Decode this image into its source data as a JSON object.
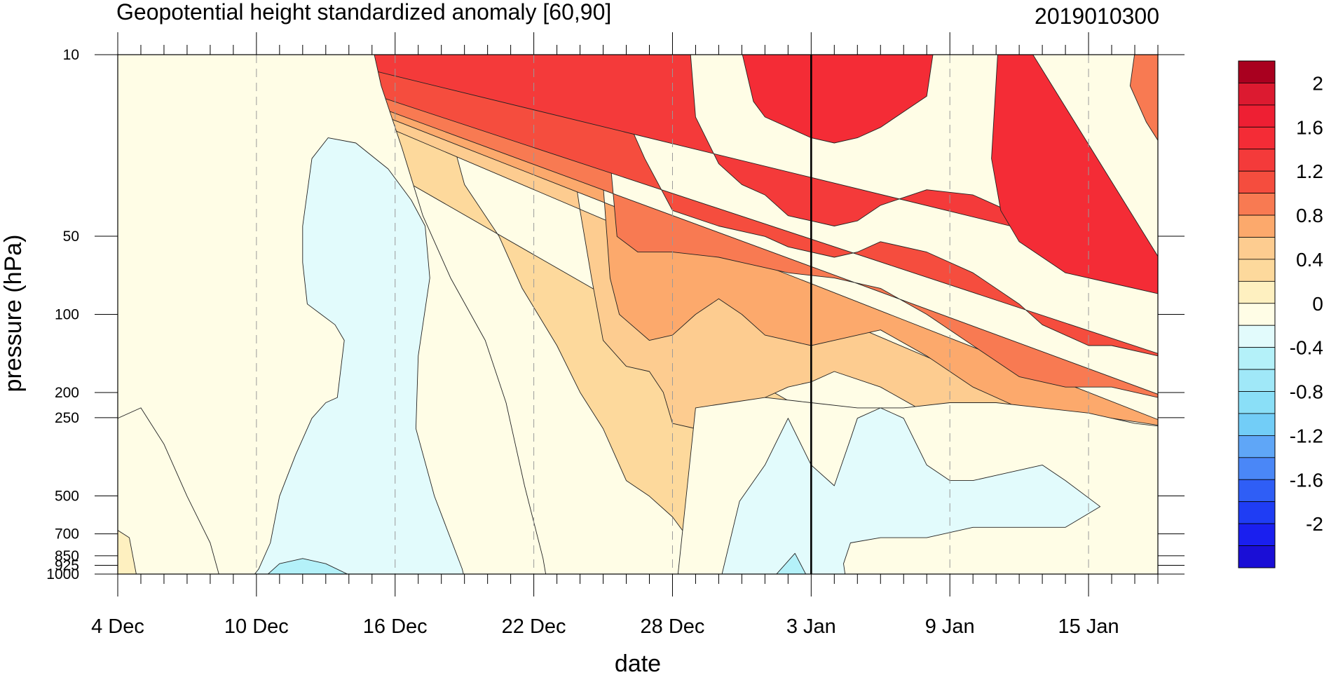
{
  "chart_data": {
    "type": "heatmap",
    "subtype": "filled-contour time-pressure cross-section",
    "title": "Geopotential height standardized anomaly [60,90]",
    "title_right": "2019010300",
    "xlabel": "date",
    "ylabel": "pressure (hPa)",
    "x_start": "2018-12-04",
    "x_end": "2019-01-18",
    "x_ticks": [
      "4 Dec",
      "10 Dec",
      "16 Dec",
      "22 Dec",
      "28 Dec",
      "3 Jan",
      "9 Jan",
      "15 Jan"
    ],
    "x_tick_days": [
      0,
      6,
      12,
      18,
      24,
      30,
      36,
      42
    ],
    "x_end_day": 45,
    "current_date_line": "3 Jan",
    "current_date_day": 30,
    "y_axis": "pressure (hPa), log scale, reversed",
    "y_ticks": [
      10,
      50,
      100,
      200,
      250,
      500,
      700,
      850,
      925,
      1000
    ],
    "y_tick_labels": [
      "10",
      "50",
      "100",
      "200",
      "250",
      "500",
      "700",
      "850",
      "925",
      "1000"
    ],
    "ylim": [
      1000,
      10
    ],
    "grid": "dashed vertical lines at major date ticks",
    "colorbar": {
      "position": "right",
      "levels": [
        -2.2,
        -2.0,
        -1.8,
        -1.6,
        -1.4,
        -1.2,
        -1.0,
        -0.8,
        -0.6,
        -0.4,
        -0.2,
        0,
        0.2,
        0.4,
        0.6,
        0.8,
        1.0,
        1.2,
        1.4,
        1.6,
        1.8,
        2.0,
        2.2
      ],
      "labels": [
        "2",
        "1.6",
        "1.2",
        "0.8",
        "0.4",
        "0",
        "-0.4",
        "-0.8",
        "-1.2",
        "-1.6",
        "-2"
      ],
      "colors_low_to_high": [
        "#1a0ed6",
        "#1a1fef",
        "#1f3df4",
        "#2f5ef6",
        "#4a87f7",
        "#5fa6f7",
        "#72cdf7",
        "#8adff7",
        "#a0e8f8",
        "#b4f1f9",
        "#e2fbfc",
        "#fffde6",
        "#fef0c0",
        "#fdd99c",
        "#fdcc90",
        "#fca96c",
        "#f87a52",
        "#f54d3e",
        "#f43a3a",
        "#f42c36",
        "#ee1f33",
        "#dc1a30",
        "#a9001f"
      ]
    },
    "regions": [
      {
        "level": 0.4,
        "points": [
          [
            -1,
            -0.1
          ],
          [
            13.1,
            -0.1
          ],
          [
            14.2,
            0.12
          ],
          [
            15,
            0.25
          ],
          [
            16.5,
            0.35
          ],
          [
            17.5,
            0.45
          ],
          [
            19,
            0.56
          ],
          [
            20,
            0.65
          ],
          [
            21,
            0.72
          ],
          [
            22,
            0.82
          ],
          [
            23,
            0.85
          ],
          [
            24,
            0.89
          ],
          [
            25,
            0.95
          ],
          [
            27,
            0.95
          ],
          [
            29,
            0.96
          ],
          [
            31,
            0.95
          ],
          [
            35,
            0.98
          ],
          [
            39,
            1
          ],
          [
            43,
            0.99
          ],
          [
            46,
            1.1
          ]
        ]
      },
      {
        "level": 0.6,
        "points": [
          [
            -1,
            -0.1
          ],
          [
            18.8,
            -0.1
          ],
          [
            19.5,
            0.15
          ],
          [
            20,
            0.3
          ],
          [
            20.5,
            0.43
          ],
          [
            21,
            0.55
          ],
          [
            22,
            0.6
          ],
          [
            23,
            0.61
          ],
          [
            23.6,
            0.65
          ],
          [
            24,
            0.71
          ],
          [
            25,
            0.72
          ],
          [
            26,
            0.74
          ],
          [
            27,
            0.74
          ],
          [
            28,
            0.66
          ],
          [
            29,
            0.64
          ],
          [
            30,
            0.63
          ],
          [
            31,
            0.61
          ],
          [
            33,
            0.64
          ],
          [
            35,
            0.69
          ],
          [
            38,
            0.75
          ],
          [
            40,
            0.76
          ],
          [
            42,
            0.76
          ],
          [
            44,
            0.77
          ],
          [
            46,
            0.79
          ]
        ]
      },
      {
        "level": 0.8,
        "points": [
          [
            -1,
            -0.1
          ],
          [
            20.5,
            -0.1
          ],
          [
            20.8,
            0.1
          ],
          [
            21,
            0.25
          ],
          [
            21.3,
            0.43
          ],
          [
            21.7,
            0.5
          ],
          [
            23,
            0.55
          ],
          [
            24,
            0.54
          ],
          [
            25,
            0.5
          ],
          [
            26,
            0.47
          ],
          [
            27,
            0.5
          ],
          [
            28,
            0.54
          ],
          [
            29,
            0.55
          ],
          [
            30,
            0.56
          ],
          [
            31,
            0.55
          ],
          [
            33,
            0.53
          ],
          [
            35,
            0.58
          ],
          [
            37,
            0.64
          ],
          [
            39,
            0.68
          ],
          [
            41,
            0.69
          ],
          [
            43,
            0.7
          ],
          [
            46,
            0.72
          ]
        ]
      },
      {
        "level": 1.0,
        "points": [
          [
            -1,
            -0.1
          ],
          [
            21.1,
            -0.1
          ],
          [
            21.3,
            0.2
          ],
          [
            21.6,
            0.35
          ],
          [
            22.5,
            0.38
          ],
          [
            24,
            0.38
          ],
          [
            26,
            0.39
          ],
          [
            27,
            0.4
          ],
          [
            29,
            0.42
          ],
          [
            31,
            0.43
          ],
          [
            33,
            0.45
          ],
          [
            35,
            0.5
          ],
          [
            37,
            0.56
          ],
          [
            39,
            0.62
          ],
          [
            41,
            0.64
          ],
          [
            43,
            0.64
          ],
          [
            46,
            0.67
          ]
        ]
      },
      {
        "level": 1.2,
        "points": [
          [
            -1,
            -0.1
          ],
          [
            22,
            -0.1
          ],
          [
            22.2,
            0.14
          ],
          [
            22.8,
            0.2
          ],
          [
            24,
            0.3
          ],
          [
            26,
            0.33
          ],
          [
            27,
            0.34
          ],
          [
            28,
            0.35
          ],
          [
            29,
            0.37
          ],
          [
            31,
            0.39
          ],
          [
            32,
            0.38
          ],
          [
            33,
            0.36
          ],
          [
            35,
            0.38
          ],
          [
            37,
            0.42
          ],
          [
            39,
            0.48
          ],
          [
            40,
            0.52
          ],
          [
            42,
            0.56
          ],
          [
            43,
            0.56
          ],
          [
            46,
            0.59
          ]
        ]
      },
      {
        "level": 1.4,
        "points": [
          [
            -1,
            -0.1
          ],
          [
            24.6,
            -0.1
          ],
          [
            25,
            0.12
          ],
          [
            26,
            0.21
          ],
          [
            27,
            0.25
          ],
          [
            28,
            0.27
          ],
          [
            29,
            0.31
          ],
          [
            30,
            0.32
          ],
          [
            31,
            0.33
          ],
          [
            32,
            0.32
          ],
          [
            33,
            0.29
          ],
          [
            35,
            0.26
          ],
          [
            37,
            0.27
          ],
          [
            39,
            0.31
          ],
          [
            41,
            0.36
          ],
          [
            43,
            0.38
          ],
          [
            45,
            0.4
          ],
          [
            46,
            0.41
          ]
        ]
      },
      {
        "level": 1.6,
        "points": [
          [
            -1,
            -0.1
          ],
          [
            26.5,
            -0.1
          ],
          [
            27.5,
            0.09
          ],
          [
            28,
            0.12
          ],
          [
            29,
            0.14
          ],
          [
            30,
            0.16
          ],
          [
            31,
            0.17
          ],
          [
            32,
            0.16
          ],
          [
            33,
            0.14
          ],
          [
            34,
            0.11
          ],
          [
            35,
            0.08
          ],
          [
            35.6,
            -0.1
          ]
        ]
      },
      {
        "level": 1.6,
        "points": [
          [
            38.2,
            -0.1
          ],
          [
            37.8,
            0.2
          ],
          [
            38.2,
            0.3
          ],
          [
            39,
            0.36
          ],
          [
            41,
            0.42
          ],
          [
            43,
            0.44
          ],
          [
            45,
            0.46
          ],
          [
            46,
            0.46
          ]
        ]
      },
      {
        "level": 1.0,
        "points": [
          [
            45.5,
            -0.1
          ],
          [
            44.3,
            -0.1
          ],
          [
            43.8,
            0.06
          ],
          [
            44.5,
            0.13
          ],
          [
            45.5,
            0.2
          ],
          [
            46,
            0.2
          ]
        ]
      },
      {
        "level": 0.0,
        "points": [
          [
            -1,
            1.1
          ],
          [
            -1,
            -0.1
          ],
          [
            10.6,
            -0.1
          ],
          [
            11.4,
            0.06
          ],
          [
            12.3,
            0.18
          ],
          [
            13.2,
            0.31
          ],
          [
            14.4,
            0.43
          ],
          [
            15.9,
            0.55
          ],
          [
            16.8,
            0.67
          ],
          [
            17.6,
            0.83
          ],
          [
            18.4,
            0.97
          ],
          [
            18.9,
            1.1
          ]
        ]
      },
      {
        "level": 0.0,
        "points": [
          [
            -1,
            1.1
          ],
          [
            -1,
            0.7
          ],
          [
            0,
            0.7
          ],
          [
            1,
            0.68
          ],
          [
            2,
            0.75
          ],
          [
            3,
            0.85
          ],
          [
            4,
            0.94
          ],
          [
            5,
            1.1
          ]
        ]
      },
      {
        "level": 0.2,
        "points": [
          [
            -1,
            0.94
          ],
          [
            -0.2,
            0.91
          ],
          [
            0.5,
            0.93
          ],
          [
            0.8,
            1.0
          ],
          [
            1.1,
            1.1
          ],
          [
            -1,
            1.1
          ]
        ]
      },
      {
        "level": 0.0,
        "points": [
          [
            31.8,
            1.1
          ],
          [
            29.9,
            1.1
          ],
          [
            28,
            1.1
          ],
          [
            27,
            1.1
          ],
          [
            25,
            1.1
          ],
          [
            24,
            1.1
          ],
          [
            25,
            0.68
          ],
          [
            26.5,
            0.67
          ],
          [
            28,
            0.66
          ],
          [
            30,
            0.67
          ],
          [
            32,
            0.68
          ],
          [
            34,
            0.68
          ],
          [
            36,
            0.67
          ],
          [
            38,
            0.67
          ],
          [
            40,
            0.68
          ],
          [
            42,
            0.69
          ],
          [
            44,
            0.71
          ],
          [
            46,
            0.72
          ],
          [
            46,
            1.1
          ]
        ]
      },
      {
        "level": 0.2,
        "points": [
          [
            37,
            1.1
          ],
          [
            38,
            1.09
          ],
          [
            39,
            1.08
          ],
          [
            40,
            1.09
          ],
          [
            41,
            1.1
          ]
        ]
      },
      {
        "level": 0.2,
        "points": [
          [
            42,
            1.1
          ],
          [
            43,
            1.06
          ],
          [
            44,
            1.04
          ],
          [
            45,
            1.02
          ],
          [
            46,
            0.97
          ],
          [
            46,
            1.1
          ]
        ]
      },
      {
        "level": -0.2,
        "points": [
          [
            1.9,
            1.1
          ],
          [
            2.7,
            1.06
          ],
          [
            4.1,
            1.02
          ],
          [
            5.4,
            1.03
          ],
          [
            6.1,
            0.99
          ],
          [
            6.6,
            0.94
          ],
          [
            7.0,
            0.85
          ],
          [
            7.7,
            0.77
          ],
          [
            8.4,
            0.7
          ],
          [
            9.0,
            0.67
          ],
          [
            9.5,
            0.66
          ],
          [
            9.8,
            0.55
          ],
          [
            9.4,
            0.52
          ],
          [
            8.8,
            0.5
          ],
          [
            8.2,
            0.48
          ],
          [
            8.0,
            0.4
          ],
          [
            8.0,
            0.33
          ],
          [
            8.4,
            0.2
          ],
          [
            9.1,
            0.16
          ],
          [
            10.3,
            0.17
          ],
          [
            11.7,
            0.22
          ],
          [
            12.7,
            0.28
          ],
          [
            13.3,
            0.33
          ],
          [
            13.5,
            0.43
          ],
          [
            13.0,
            0.58
          ],
          [
            12.9,
            0.72
          ],
          [
            13.7,
            0.85
          ],
          [
            14.9,
            0.99
          ],
          [
            15.5,
            1.1
          ]
        ]
      },
      {
        "level": -0.2,
        "points": [
          [
            25.6,
            1.1
          ],
          [
            26.9,
            0.86
          ],
          [
            28,
            0.79
          ],
          [
            29,
            0.7
          ],
          [
            30,
            0.79
          ],
          [
            31,
            0.83
          ],
          [
            31.7,
            0.74
          ],
          [
            32,
            0.7
          ],
          [
            33,
            0.68
          ],
          [
            34,
            0.7
          ],
          [
            35,
            0.79
          ],
          [
            36,
            0.82
          ],
          [
            37,
            0.82
          ],
          [
            38,
            0.81
          ],
          [
            39,
            0.8
          ],
          [
            40,
            0.79
          ],
          [
            41,
            0.82
          ],
          [
            42.5,
            0.87
          ],
          [
            41,
            0.91
          ],
          [
            39,
            0.91
          ],
          [
            37,
            0.91
          ],
          [
            35,
            0.93
          ],
          [
            33,
            0.93
          ],
          [
            31.7,
            0.94
          ],
          [
            31.4,
            0.98
          ],
          [
            31.8,
            1.1
          ]
        ]
      },
      {
        "level": -0.4,
        "points": [
          [
            5.3,
            1.1
          ],
          [
            6.0,
            1.02
          ],
          [
            7.0,
            0.98
          ],
          [
            8.0,
            0.97
          ],
          [
            9.0,
            0.98
          ],
          [
            10.4,
            1.01
          ],
          [
            11.2,
            1.04
          ],
          [
            12.4,
            1.07
          ],
          [
            13.0,
            1.1
          ]
        ]
      },
      {
        "level": -0.4,
        "points": [
          [
            27.3,
            1.1
          ],
          [
            28.3,
            1.01
          ],
          [
            29.3,
            0.96
          ],
          [
            30,
            1.02
          ],
          [
            30.7,
            1.1
          ]
        ]
      },
      {
        "level": -0.6,
        "points": [
          [
            6.2,
            1.1
          ],
          [
            7.1,
            1.06
          ],
          [
            8.5,
            1.05
          ],
          [
            9.6,
            1.07
          ],
          [
            10.3,
            1.1
          ]
        ]
      },
      {
        "level": -0.6,
        "points": [
          [
            28.5,
            1.1
          ],
          [
            29.3,
            1.08
          ],
          [
            30,
            1.1
          ]
        ]
      }
    ]
  }
}
